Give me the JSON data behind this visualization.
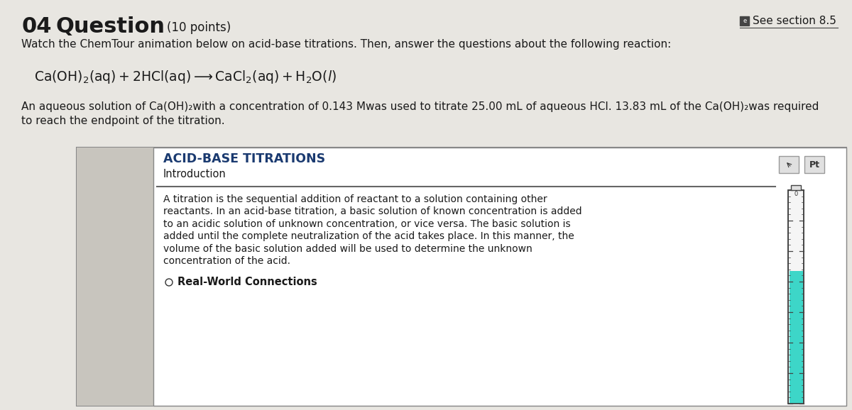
{
  "bg_color": "#e8e6e1",
  "box_bg": "#ffffff",
  "box_border": "#999999",
  "title_number": "04",
  "title_word": "Question",
  "title_points": "(10 points)",
  "see_section": "See section 8.5",
  "subtitle": "Watch the ChemTour animation below on acid-base titrations. Then, answer the questions about the following reaction:",
  "description_line1": "An aqueous solution of Ca(OH)₂with a concentration of 0.143 Mwas used to titrate 25.00 mL of aqueous HCl. 13.83 mL of the Ca(OH)₂was required",
  "description_line2": "to reach the endpoint of the titration.",
  "box_title": "ACID-BASE TITRATIONS",
  "box_subtitle": "Introduction",
  "box_text_lines": [
    "A titration is the sequential addition of reactant to a solution containing other",
    "reactants. In an acid-base titration, a basic solution of known concentration is added",
    "to an acidic solution of unknown concentration, or vice versa. The basic solution is",
    "added until the complete neutralization of the acid takes place. In this manner, the",
    "volume of the basic solution added will be used to determine the unknown",
    "concentration of the acid."
  ],
  "real_world": "Real-World Connections",
  "burette_fill_color": "#3dd6c8",
  "burette_border_color": "#444444",
  "burette_tick_color": "#444444",
  "sidebar_color": "#c8c5be",
  "text_color": "#1a1a1a",
  "title_blue": "#1a3a70",
  "sep_line_color": "#666666",
  "icon_bg": "#e0e0e0",
  "icon_border": "#999999"
}
